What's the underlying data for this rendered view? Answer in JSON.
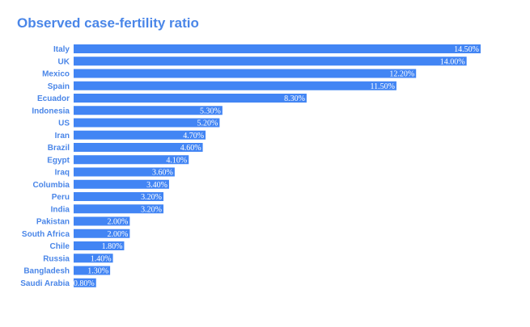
{
  "colors": {
    "accent": "#4285f4",
    "label": "#4a86e8",
    "value_text": "#ffffff"
  },
  "chart_data": {
    "type": "bar",
    "orientation": "horizontal",
    "title": "Observed case-fertility ratio",
    "xlabel": "",
    "ylabel": "",
    "categories": [
      "Italy",
      "UK",
      "Mexico",
      "Spain",
      "Ecuador",
      "Indonesia",
      "US",
      "Iran",
      "Brazil",
      "Egypt",
      "Iraq",
      "Columbia",
      "Peru",
      "India",
      "Pakistan",
      "South Africa",
      "Chile",
      "Russia",
      "Bangladesh",
      "Saudi Arabia"
    ],
    "values": [
      14.5,
      14.0,
      12.2,
      11.5,
      8.3,
      5.3,
      5.2,
      4.7,
      4.6,
      4.1,
      3.6,
      3.4,
      3.2,
      3.2,
      2.0,
      2.0,
      1.8,
      1.4,
      1.3,
      0.8
    ],
    "value_labels": [
      "14.50%",
      "14.00%",
      "12.20%",
      "11.50%",
      "8.30%",
      "5.30%",
      "5.20%",
      "4.70%",
      "4.60%",
      "4.10%",
      "3.60%",
      "3.40%",
      "3.20%",
      "3.20%",
      "2.00%",
      "2.00%",
      "1.80%",
      "1.40%",
      "1.30%",
      "0.80%"
    ],
    "xlim": [
      0,
      14.5
    ],
    "grid": false,
    "legend": "none"
  }
}
